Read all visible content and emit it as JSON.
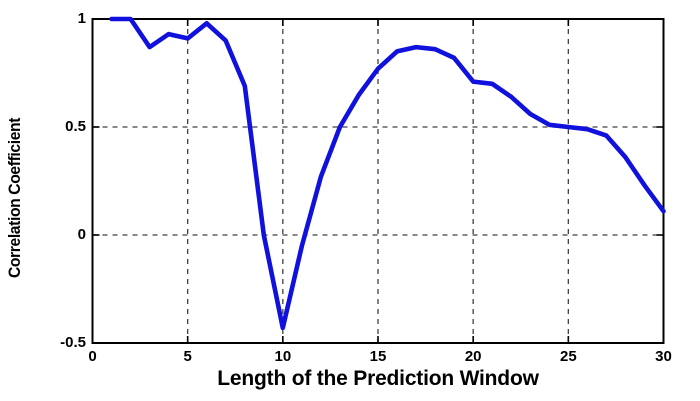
{
  "figure": {
    "background": "#ffffff"
  },
  "chart_data": {
    "type": "line",
    "title": "",
    "xlabel": "Length of the Prediction Window",
    "ylabel": "Correlation Coefficient",
    "x": [
      1,
      2,
      3,
      4,
      5,
      6,
      7,
      8,
      9,
      10,
      11,
      12,
      13,
      14,
      15,
      16,
      17,
      18,
      19,
      20,
      21,
      22,
      23,
      24,
      25,
      26,
      27,
      28,
      29,
      30
    ],
    "y": [
      1.0,
      1.0,
      0.87,
      0.93,
      0.91,
      0.98,
      0.9,
      0.69,
      0.0,
      -0.43,
      -0.05,
      0.27,
      0.5,
      0.65,
      0.77,
      0.85,
      0.87,
      0.86,
      0.82,
      0.71,
      0.7,
      0.64,
      0.56,
      0.51,
      0.5,
      0.49,
      0.46,
      0.36,
      0.23,
      0.11
    ],
    "xlim": [
      0,
      30
    ],
    "ylim": [
      -0.5,
      1
    ],
    "x_ticks": [
      0,
      5,
      10,
      15,
      20,
      25,
      30
    ],
    "x_tick_labels": [
      "0",
      "5",
      "10",
      "15",
      "20",
      "25",
      "30"
    ],
    "y_ticks": [
      -0.5,
      0,
      0.5,
      1
    ],
    "y_tick_labels": [
      "-0.5",
      "0",
      "0.5",
      "1"
    ],
    "grid": "on",
    "grid_style": "dashed",
    "legend_position": "none",
    "line_color": "#1111dd",
    "grid_color": "#404040",
    "axis_color": "#000000"
  }
}
